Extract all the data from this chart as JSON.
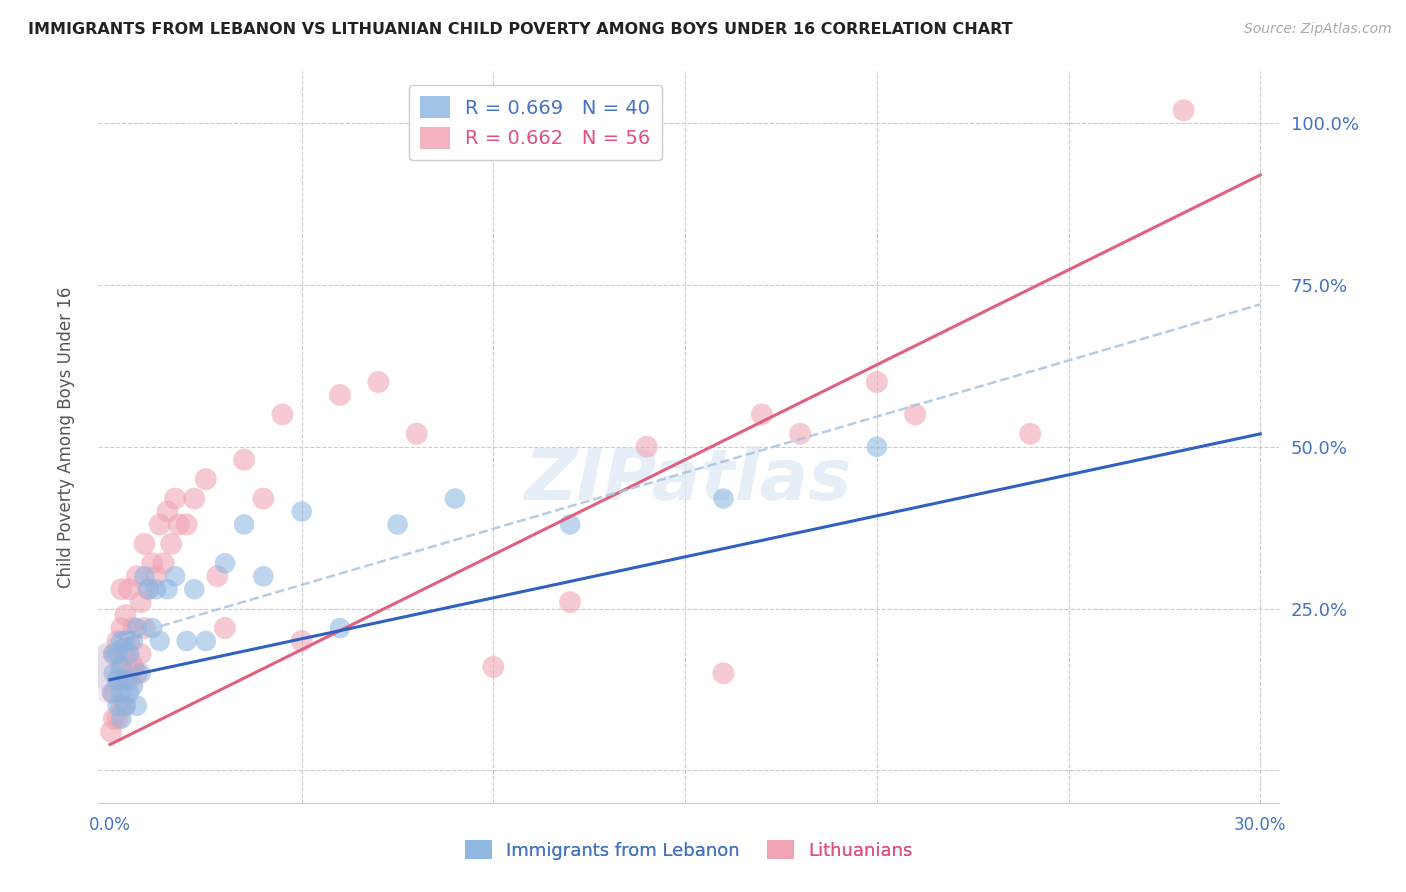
{
  "title": "IMMIGRANTS FROM LEBANON VS LITHUANIAN CHILD POVERTY AMONG BOYS UNDER 16 CORRELATION CHART",
  "source": "Source: ZipAtlas.com",
  "ylabel": "Child Poverty Among Boys Under 16",
  "xlim": [
    -0.003,
    0.305
  ],
  "ylim": [
    -0.05,
    1.08
  ],
  "xticks": [
    0.0,
    0.05,
    0.1,
    0.15,
    0.2,
    0.25,
    0.3
  ],
  "yticks": [
    0.0,
    0.25,
    0.5,
    0.75,
    1.0
  ],
  "ytick_labels": [
    "",
    "25.0%",
    "50.0%",
    "75.0%",
    "100.0%"
  ],
  "color_blue": "#8ab4e0",
  "color_pink": "#f0a0b0",
  "color_blue_line": "#3060c0",
  "color_pink_line": "#e06080",
  "color_dashed": "#a8c4e0",
  "watermark": "ZIPatlas",
  "legend_blue_r": "R = 0.669",
  "legend_blue_n": "N = 40",
  "legend_pink_r": "R = 0.662",
  "legend_pink_n": "N = 56",
  "blue_scatter_x": [
    0.0005,
    0.001,
    0.001,
    0.002,
    0.002,
    0.002,
    0.003,
    0.003,
    0.003,
    0.003,
    0.004,
    0.004,
    0.004,
    0.005,
    0.005,
    0.006,
    0.006,
    0.007,
    0.007,
    0.008,
    0.009,
    0.01,
    0.011,
    0.012,
    0.013,
    0.015,
    0.017,
    0.02,
    0.022,
    0.025,
    0.03,
    0.035,
    0.04,
    0.05,
    0.06,
    0.075,
    0.09,
    0.12,
    0.16,
    0.2
  ],
  "blue_scatter_y": [
    0.12,
    0.15,
    0.18,
    0.1,
    0.14,
    0.18,
    0.08,
    0.12,
    0.16,
    0.2,
    0.1,
    0.14,
    0.2,
    0.12,
    0.18,
    0.13,
    0.2,
    0.1,
    0.22,
    0.15,
    0.3,
    0.28,
    0.22,
    0.28,
    0.2,
    0.28,
    0.3,
    0.2,
    0.28,
    0.2,
    0.32,
    0.38,
    0.3,
    0.4,
    0.22,
    0.38,
    0.42,
    0.38,
    0.42,
    0.5
  ],
  "pink_scatter_x": [
    0.0003,
    0.001,
    0.001,
    0.001,
    0.002,
    0.002,
    0.002,
    0.003,
    0.003,
    0.003,
    0.003,
    0.004,
    0.004,
    0.004,
    0.005,
    0.005,
    0.005,
    0.006,
    0.006,
    0.007,
    0.007,
    0.008,
    0.008,
    0.009,
    0.009,
    0.01,
    0.011,
    0.012,
    0.013,
    0.014,
    0.015,
    0.016,
    0.017,
    0.018,
    0.02,
    0.022,
    0.025,
    0.028,
    0.03,
    0.035,
    0.04,
    0.045,
    0.05,
    0.06,
    0.07,
    0.08,
    0.1,
    0.12,
    0.14,
    0.16,
    0.17,
    0.18,
    0.2,
    0.21,
    0.24,
    0.28
  ],
  "pink_scatter_y": [
    0.06,
    0.08,
    0.12,
    0.18,
    0.08,
    0.14,
    0.2,
    0.1,
    0.16,
    0.22,
    0.28,
    0.1,
    0.18,
    0.24,
    0.14,
    0.2,
    0.28,
    0.16,
    0.22,
    0.15,
    0.3,
    0.18,
    0.26,
    0.22,
    0.35,
    0.28,
    0.32,
    0.3,
    0.38,
    0.32,
    0.4,
    0.35,
    0.42,
    0.38,
    0.38,
    0.42,
    0.45,
    0.3,
    0.22,
    0.48,
    0.42,
    0.55,
    0.2,
    0.58,
    0.6,
    0.52,
    0.16,
    0.26,
    0.5,
    0.15,
    0.55,
    0.52,
    0.6,
    0.55,
    0.52,
    1.02
  ],
  "blue_line_x": [
    0.0,
    0.3
  ],
  "blue_line_y": [
    0.14,
    0.52
  ],
  "pink_line_x": [
    0.0,
    0.3
  ],
  "pink_line_y": [
    0.04,
    0.92
  ],
  "dashed_line_x": [
    0.0,
    0.3
  ],
  "dashed_line_y": [
    0.2,
    0.72
  ]
}
